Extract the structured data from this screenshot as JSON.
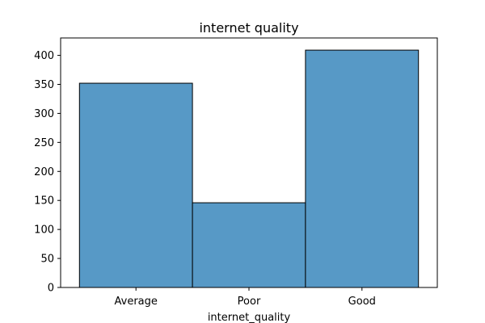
{
  "chart_data": {
    "type": "bar",
    "title": "internet quality",
    "xlabel": "internet_quality",
    "ylabel": "",
    "categories": [
      "Average",
      "Poor",
      "Good"
    ],
    "values": [
      352,
      146,
      409
    ],
    "ylim": [
      0,
      430
    ],
    "yticks": [
      0,
      50,
      100,
      150,
      200,
      250,
      300,
      350,
      400
    ],
    "grid": false,
    "colors": {
      "bar_fill": "#5799c6",
      "bar_edge": "#000000",
      "axis": "#000000",
      "background": "#ffffff"
    }
  }
}
